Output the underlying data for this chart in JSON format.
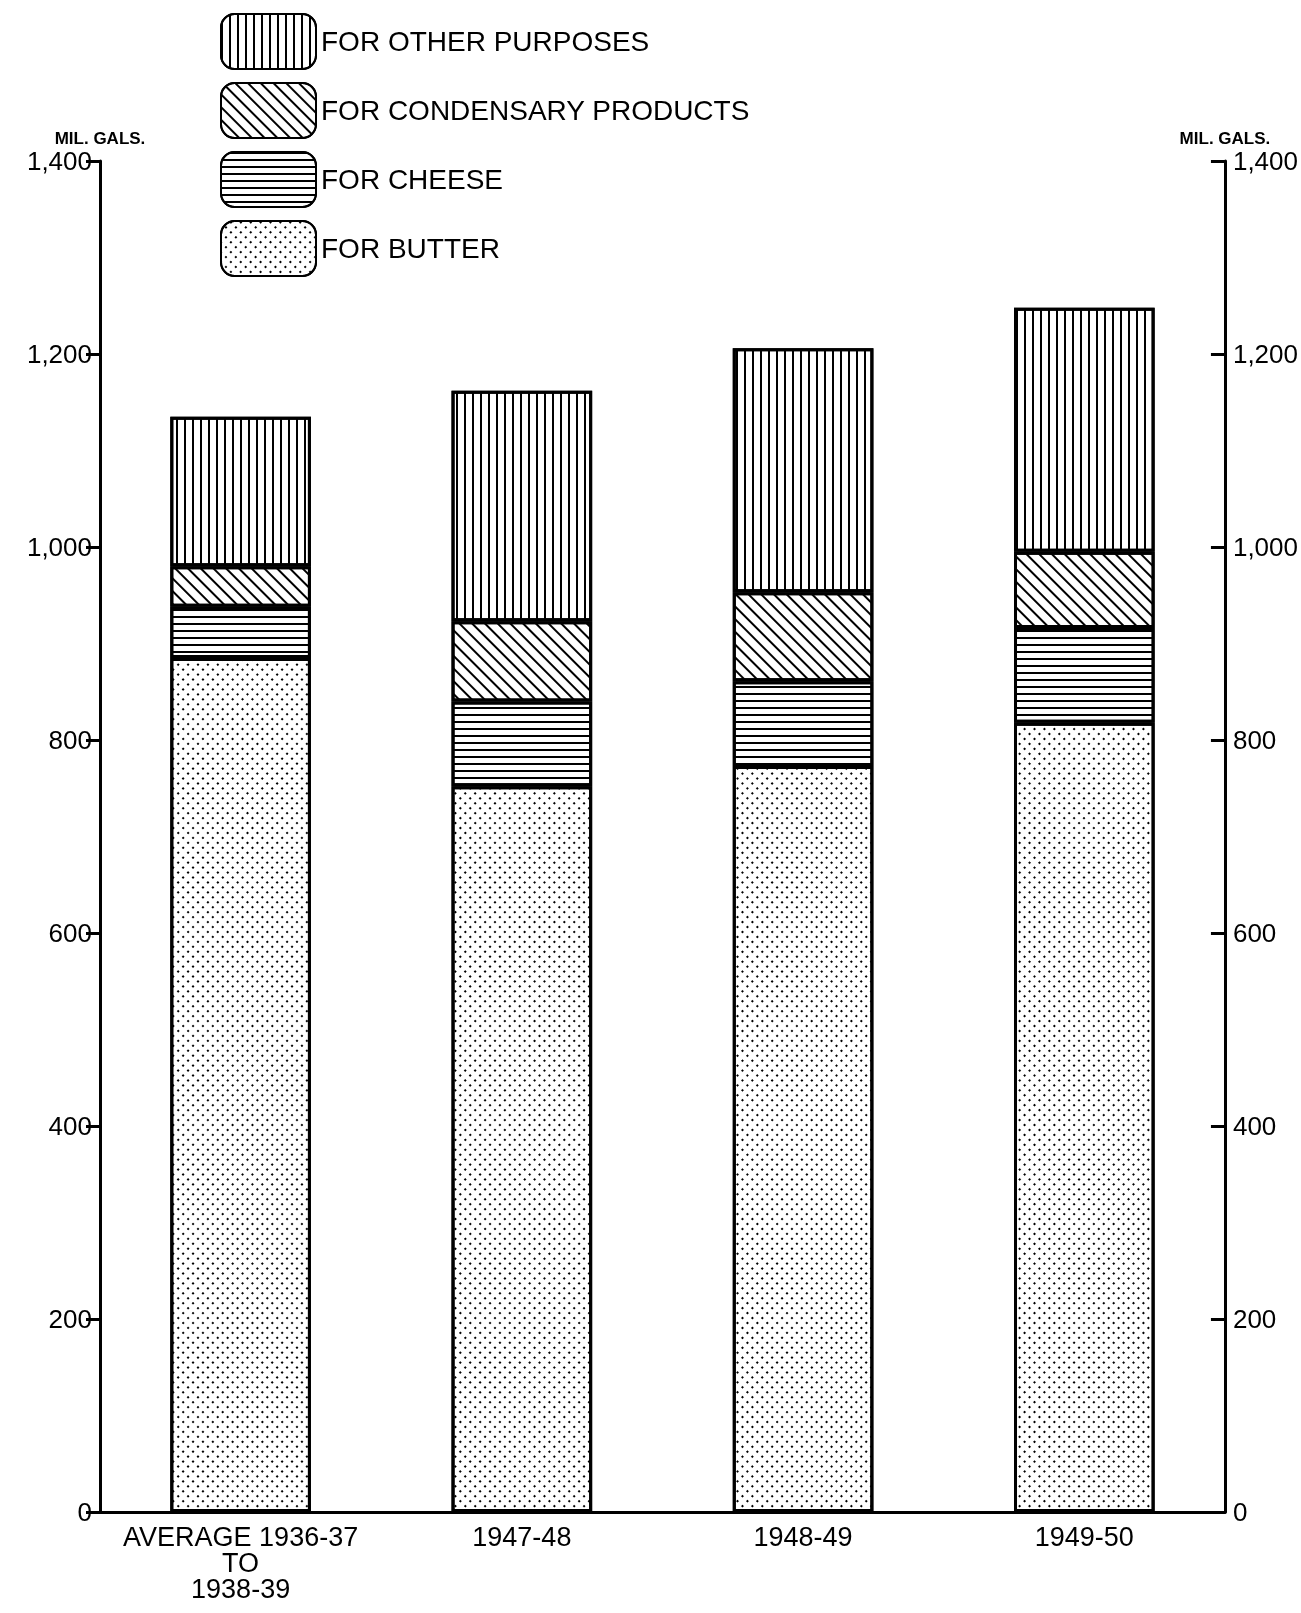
{
  "chart_data": {
    "type": "bar",
    "stacked": true,
    "categories": [
      "AVERAGE 1936-37\nTO\n1938-39",
      "1947-48",
      "1948-49",
      "1949-50"
    ],
    "series": [
      {
        "name": "FOR BUTTER",
        "color": "#ffffff",
        "values": [
          885,
          752,
          773,
          818
        ]
      },
      {
        "name": "FOR CHEESE",
        "color": "#ffffff",
        "values": [
          53,
          88,
          88,
          98
        ]
      },
      {
        "name": "FOR CONDENSARY PRODUCTS",
        "color": "#ffffff",
        "values": [
          42,
          83,
          92,
          79
        ]
      },
      {
        "name": "FOR OTHER PURPOSES",
        "color": "#ffffff",
        "values": [
          155,
          239,
          253,
          253
        ]
      }
    ],
    "ylabel": "MIL. GALS.",
    "y2label": "MIL. GALS.",
    "ylim": [
      0,
      1400
    ],
    "yticks": [
      0,
      200,
      400,
      600,
      800,
      {
        "value": 1000,
        "label": "1,000"
      },
      {
        "value": 1200,
        "label": "1,200"
      },
      {
        "value": 1400,
        "label": "1,400"
      }
    ],
    "y2lim": [
      0,
      1400
    ],
    "y2ticks": [
      0,
      200,
      400,
      600,
      800,
      {
        "value": 1000,
        "label": "1,000"
      },
      {
        "value": 1200,
        "label": "1,200"
      },
      {
        "value": 1400,
        "label": "1,400"
      }
    ],
    "legend": "top left",
    "grid": false
  }
}
